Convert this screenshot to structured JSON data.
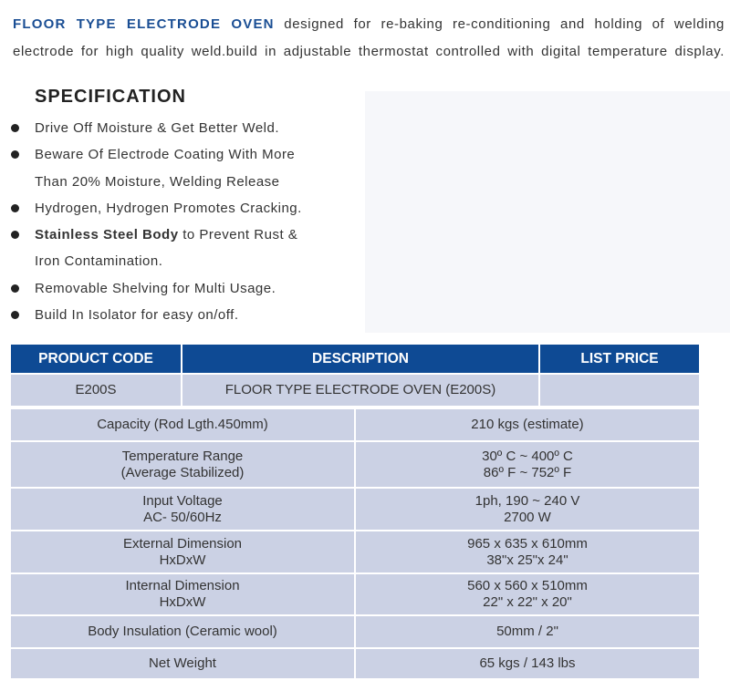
{
  "intro": {
    "product_name": "FLOOR TYPE ELECTRODE OVEN",
    "line1_rest": "designed for re-baking re-conditioning and holding of welding",
    "line2": "electrode for high quality weld.build in adjustable thermostat controlled with digital temperature display."
  },
  "specification": {
    "title": "SPECIFICATION",
    "bullets": [
      {
        "lines": [
          "Drive Off Moisture & Get Better Weld."
        ]
      },
      {
        "lines": [
          "Beware Of Electrode Coating With More",
          "Than 20% Moisture, Welding Release"
        ]
      },
      {
        "lines": [
          "Hydrogen, Hydrogen Promotes Cracking."
        ]
      },
      {
        "bold": "Stainless Steel Body",
        "lines": [
          " to Prevent Rust &",
          "Iron Contamination."
        ]
      },
      {
        "lines": [
          "Removable Shelving for Multi Usage."
        ]
      },
      {
        "lines": [
          "Build In Isolator for easy on/off."
        ]
      }
    ]
  },
  "product_table": {
    "headers": [
      "PRODUCT CODE",
      "DESCRIPTION",
      "LIST PRICE"
    ],
    "row": [
      "E200S",
      "FLOOR TYPE ELECTRODE OVEN (E200S)",
      ""
    ]
  },
  "spec_table": [
    {
      "label": [
        "Capacity (Rod Lgth.450mm)"
      ],
      "value": [
        "210 kgs (estimate)"
      ]
    },
    {
      "label": [
        "Temperature Range",
        "(Average Stabilized)"
      ],
      "value": [
        "30º C ~ 400º C",
        "86º F ~ 752º F"
      ]
    },
    {
      "label": [
        "Input Voltage",
        "AC- 50/60Hz"
      ],
      "value": [
        "1ph, 190 ~ 240 V",
        "2700 W"
      ]
    },
    {
      "label": [
        "External Dimension",
        "HxDxW"
      ],
      "value": [
        "965 x 635 x 610mm",
        "38\"x 25\"x 24\""
      ]
    },
    {
      "label": [
        "Internal Dimension",
        "HxDxW"
      ],
      "value": [
        "560 x 560 x 510mm",
        "22\" x 22\" x 20\""
      ]
    },
    {
      "label": [
        "Body Insulation (Ceramic wool)"
      ],
      "value": [
        "50mm / 2\""
      ]
    },
    {
      "label": [
        "Net Weight"
      ],
      "value": [
        "65 kgs / 143 lbs"
      ]
    }
  ],
  "colors": {
    "header_bg": "#0e4a94",
    "cell_bg": "#cbd1e4",
    "title_blue": "#1a4e94"
  }
}
